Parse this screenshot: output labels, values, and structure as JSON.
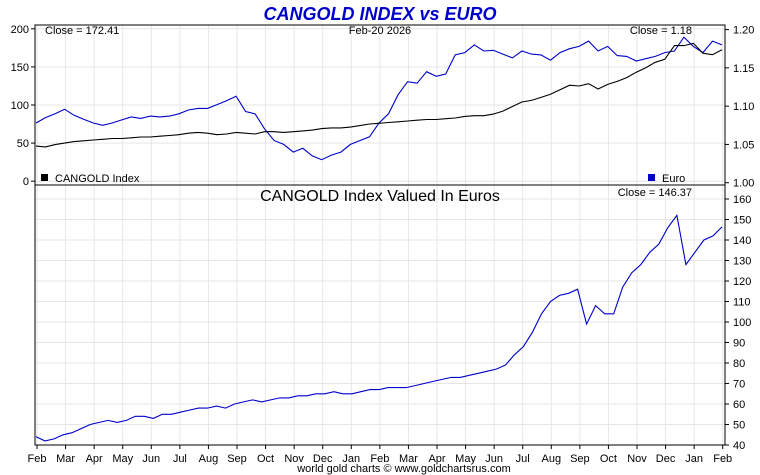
{
  "chart_data": [
    {
      "type": "line",
      "title": "CANGOLD INDEX vs EURO",
      "date": "Feb-20  2026",
      "left_close_label": "Close = 172.41",
      "right_close_label": "Close = 1.18",
      "x_labels": [
        "Feb",
        "Mar",
        "Apr",
        "May",
        "Jun",
        "Jul",
        "Aug",
        "Sep",
        "Oct",
        "Nov",
        "Dec",
        "Jan",
        "Feb",
        "Mar",
        "Apr",
        "May",
        "Jun",
        "Jul",
        "Aug",
        "Sep",
        "Oct",
        "Nov",
        "Dec",
        "Jan",
        "Feb"
      ],
      "y_left": {
        "ticks": [
          0,
          50,
          100,
          150,
          200
        ],
        "range": [
          -5,
          205
        ]
      },
      "y_right": {
        "ticks": [
          1.0,
          1.05,
          1.1,
          1.15,
          1.2
        ],
        "tick_labels": [
          "1.00",
          "1.05",
          "1.10",
          "1.15",
          "1.20"
        ],
        "range": [
          0.997,
          1.206
        ]
      },
      "grid": true,
      "series": [
        {
          "name": "CANGOLD Index",
          "axis": "left",
          "color": "#000000",
          "legend_position": "bottom-left",
          "values": [
            46,
            45,
            48,
            50,
            52,
            53,
            54,
            55,
            56,
            56,
            57,
            58,
            58,
            59,
            60,
            61,
            63,
            64,
            63,
            61,
            62,
            64,
            63,
            62,
            65,
            65,
            64,
            65,
            66,
            67,
            69,
            70,
            70,
            71,
            73,
            75,
            76,
            77,
            78,
            79,
            80,
            81,
            81,
            82,
            83,
            85,
            86,
            86,
            88,
            92,
            98,
            104,
            106,
            110,
            114,
            120,
            126,
            125,
            128,
            121,
            127,
            131,
            136,
            143,
            149,
            156,
            160,
            178,
            178,
            181,
            168,
            166,
            172.41
          ]
        },
        {
          "name": "Euro",
          "axis": "right",
          "color": "#0000cc",
          "legend_position": "bottom-right",
          "values": [
            1.078,
            1.085,
            1.09,
            1.096,
            1.088,
            1.083,
            1.078,
            1.075,
            1.078,
            1.082,
            1.086,
            1.084,
            1.087,
            1.086,
            1.087,
            1.09,
            1.095,
            1.097,
            1.097,
            1.102,
            1.107,
            1.113,
            1.093,
            1.09,
            1.07,
            1.055,
            1.05,
            1.04,
            1.045,
            1.035,
            1.03,
            1.036,
            1.04,
            1.05,
            1.055,
            1.06,
            1.078,
            1.09,
            1.115,
            1.132,
            1.13,
            1.145,
            1.139,
            1.142,
            1.167,
            1.17,
            1.18,
            1.172,
            1.173,
            1.168,
            1.163,
            1.172,
            1.168,
            1.167,
            1.16,
            1.17,
            1.175,
            1.178,
            1.185,
            1.172,
            1.178,
            1.166,
            1.165,
            1.159,
            1.162,
            1.165,
            1.17,
            1.172,
            1.19,
            1.178,
            1.17,
            1.185,
            1.18
          ]
        }
      ]
    },
    {
      "type": "line",
      "title": "CANGOLD Index Valued In Euros",
      "close_label": "Close = 146.37",
      "y_right": {
        "ticks": [
          40,
          50,
          60,
          70,
          80,
          90,
          100,
          110,
          120,
          130,
          140,
          150,
          160
        ],
        "range": [
          40,
          160
        ]
      },
      "grid": true,
      "series": [
        {
          "name": "",
          "color": "#0000cc",
          "values": [
            44,
            42,
            43,
            45,
            46,
            48,
            50,
            51,
            52,
            51,
            52,
            54,
            54,
            53,
            55,
            55,
            56,
            57,
            58,
            58,
            59,
            58,
            60,
            61,
            62,
            61,
            62,
            63,
            63,
            64,
            64,
            65,
            65,
            66,
            65,
            65,
            66,
            67,
            67,
            68,
            68,
            68,
            69,
            70,
            71,
            72,
            73,
            73,
            74,
            75,
            76,
            77,
            79,
            84,
            88,
            95,
            104,
            110,
            113,
            114,
            116,
            99,
            108,
            104,
            104,
            117,
            124,
            128,
            134,
            138,
            146,
            152,
            128,
            134,
            140,
            142,
            146.37
          ]
        }
      ]
    }
  ],
  "footer": "world gold charts © www.goldchartsrus.com",
  "colors": {
    "gold_line": "#000000",
    "euro_line": "#0000cc",
    "title": "#0000cc",
    "grid": "#e6e6e6"
  }
}
